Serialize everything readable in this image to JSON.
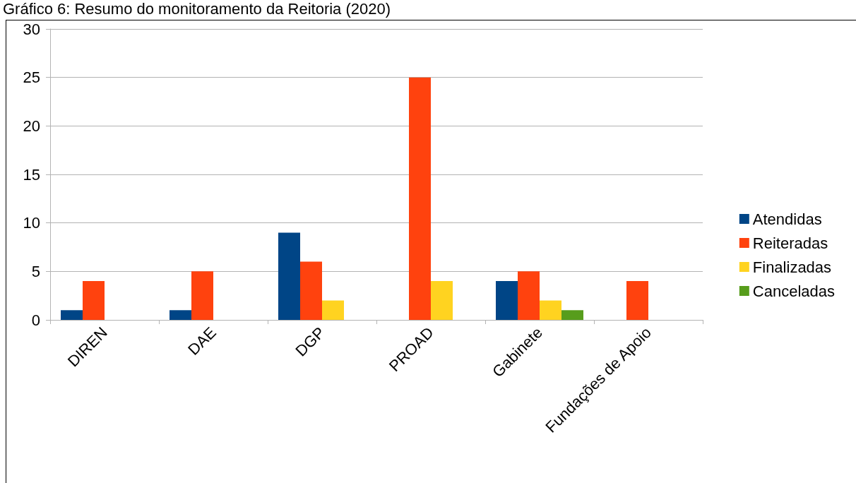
{
  "chart_data": {
    "type": "bar",
    "title": "Gráfico 6: Resumo do monitoramento da Reitoria (2020)",
    "categories": [
      "DIREN",
      "DAE",
      "DGP",
      "PROAD",
      "Gabinete",
      "Fundações de Apoio"
    ],
    "series": [
      {
        "name": "Atendidas",
        "color": "#004586",
        "values": [
          1,
          1,
          9,
          0,
          4,
          0
        ]
      },
      {
        "name": "Reiteradas",
        "color": "#ff420e",
        "values": [
          4,
          5,
          6,
          25,
          5,
          4
        ]
      },
      {
        "name": "Finalizadas",
        "color": "#ffd320",
        "values": [
          0,
          0,
          2,
          4,
          2,
          0
        ]
      },
      {
        "name": "Canceladas",
        "color": "#579d1c",
        "values": [
          0,
          0,
          0,
          0,
          1,
          0
        ]
      }
    ],
    "ylim": [
      0,
      30
    ],
    "yticks": [
      0,
      5,
      10,
      15,
      20,
      25,
      30
    ],
    "grid": "y",
    "legend": "right"
  }
}
